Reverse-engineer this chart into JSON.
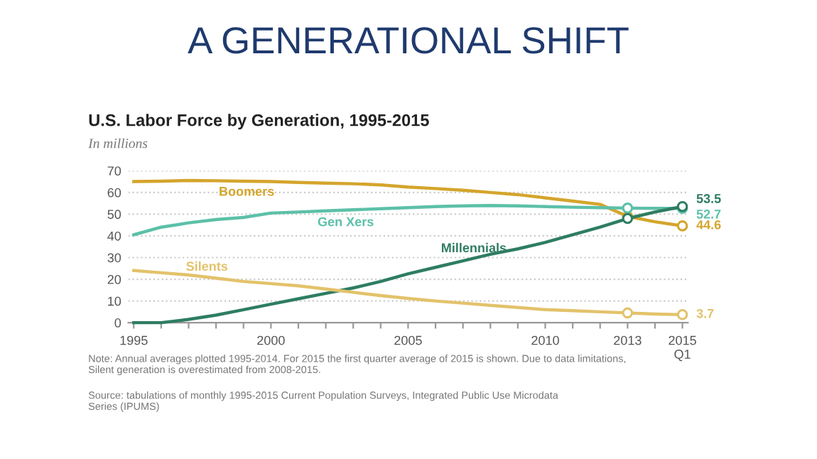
{
  "chart_data": {
    "type": "line",
    "title": "A GENERATIONAL SHIFT",
    "subtitle": "U.S. Labor Force by Generation, 1995-2015",
    "ylabel": "In millions",
    "x": [
      1995,
      1996,
      1997,
      1998,
      1999,
      2000,
      2001,
      2002,
      2003,
      2004,
      2005,
      2006,
      2007,
      2008,
      2009,
      2010,
      2011,
      2012,
      2013,
      2014,
      2015
    ],
    "series": [
      {
        "name": "Boomers",
        "color": "#d4a52c",
        "values": [
          65,
          65.2,
          65.5,
          65.4,
          65.2,
          65,
          64.6,
          64.3,
          64,
          63.5,
          62.5,
          61.8,
          61,
          60,
          59,
          57.5,
          56,
          54.5,
          49,
          46.5,
          44.6
        ],
        "value_labels": [
          null,
          null,
          null,
          null,
          null,
          null,
          null,
          null,
          null,
          null,
          null,
          null,
          null,
          null,
          null,
          null,
          null,
          null,
          null,
          null,
          "44.6"
        ]
      },
      {
        "name": "Gen Xers",
        "color": "#5cc0a8",
        "values": [
          40.5,
          44,
          46,
          47.5,
          48.5,
          50.5,
          51,
          51.5,
          52,
          52.5,
          53,
          53.5,
          53.8,
          54,
          53.8,
          53.5,
          53.2,
          53,
          52.8,
          52.7,
          52.7
        ],
        "value_labels": [
          null,
          null,
          null,
          null,
          null,
          null,
          null,
          null,
          null,
          null,
          null,
          null,
          null,
          null,
          null,
          null,
          null,
          null,
          null,
          null,
          "52.7"
        ]
      },
      {
        "name": "Millennials",
        "color": "#2e7d62",
        "values": [
          0,
          0,
          1.5,
          3.5,
          6,
          8.5,
          11,
          13.5,
          16,
          19,
          22.5,
          25.5,
          28.5,
          31.5,
          34,
          37,
          40.5,
          44,
          48,
          51,
          53.5
        ],
        "value_labels": [
          null,
          null,
          null,
          null,
          null,
          null,
          null,
          null,
          null,
          null,
          null,
          null,
          null,
          null,
          null,
          null,
          null,
          null,
          null,
          null,
          "53.5"
        ]
      },
      {
        "name": "Silents",
        "color": "#e3c26a",
        "values": [
          24,
          23,
          22,
          20.5,
          19,
          18,
          17,
          15.5,
          14,
          12.5,
          11.2,
          10,
          9,
          8,
          7,
          6,
          5.5,
          5,
          4.5,
          4,
          3.7
        ],
        "value_labels": [
          null,
          null,
          null,
          null,
          null,
          null,
          null,
          null,
          null,
          null,
          null,
          null,
          null,
          null,
          null,
          null,
          null,
          null,
          null,
          null,
          "3.7"
        ]
      }
    ],
    "xlim": [
      1994.8,
      2015.2
    ],
    "ylim": [
      0,
      70
    ],
    "xticks": [
      1995,
      {
        "value": 1996,
        "label": null
      },
      {
        "value": 1997,
        "label": null
      },
      {
        "value": 1998,
        "label": null
      },
      {
        "value": 1999,
        "label": null
      },
      2000,
      {
        "value": 2001,
        "label": null
      },
      {
        "value": 2002,
        "label": null
      },
      {
        "value": 2003,
        "label": null
      },
      {
        "value": 2004,
        "label": null
      },
      2005,
      {
        "value": 2006,
        "label": null
      },
      {
        "value": 2007,
        "label": null
      },
      {
        "value": 2008,
        "label": null
      },
      {
        "value": 2009,
        "label": null
      },
      2010,
      {
        "value": 2011,
        "label": null
      },
      {
        "value": 2012,
        "label": null
      },
      2013,
      {
        "value": 2014,
        "label": null
      },
      {
        "value": 2015,
        "label": "2015\nQ1"
      }
    ],
    "yticks": [
      0,
      10,
      20,
      30,
      40,
      50,
      60,
      70
    ],
    "grid": "y",
    "line_style": "solid",
    "annotations": [
      "Note: Annual averages plotted 1995-2014. For 2015 the first quarter average of 2015 is shown. Due to data limitations,\nSilent generation is overestimated from 2008-2015.",
      "Source: tabulations of monthly 1995-2015 Current Population Surveys, Integrated Public Use Microdata\nSeries (IPUMS)"
    ]
  }
}
